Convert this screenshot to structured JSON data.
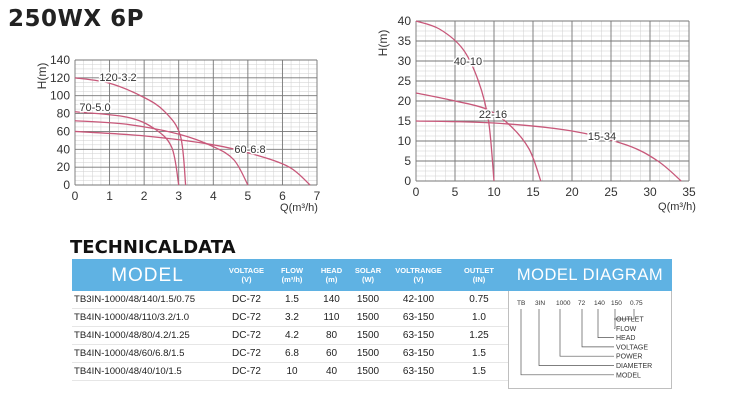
{
  "page": {
    "title": "250WX 6P"
  },
  "chart_data": [
    {
      "type": "line",
      "title": "",
      "xlabel": "Q(m³/h)",
      "ylabel": "H(m)",
      "xlim": [
        0,
        7
      ],
      "ylim": [
        0,
        140
      ],
      "xticks": [
        "0",
        "1",
        "2",
        "3",
        "4",
        "5",
        "6",
        "7"
      ],
      "yticks": [
        "0",
        "20",
        "40",
        "60",
        "80",
        "100",
        "120",
        "140"
      ],
      "grid": true,
      "series": [
        {
          "name": "120-3.2",
          "points": [
            [
              0,
              120
            ],
            [
              1,
              114
            ],
            [
              2,
              98
            ],
            [
              2.6,
              82
            ],
            [
              3.05,
              55
            ],
            [
              3.2,
              0
            ]
          ]
        },
        {
          "name": "70-5.0",
          "points": [
            [
              0,
              72
            ],
            [
              1.5,
              68
            ],
            [
              3,
              57
            ],
            [
              4,
              43
            ],
            [
              4.6,
              28
            ],
            [
              5,
              0
            ]
          ]
        },
        {
          "name": "60-6.8",
          "points": [
            [
              0,
              60
            ],
            [
              2,
              55
            ],
            [
              4,
              45
            ],
            [
              5.2,
              34
            ],
            [
              6.2,
              20
            ],
            [
              6.8,
              0
            ]
          ]
        },
        {
          "name": "",
          "points": [
            [
              0,
              82
            ],
            [
              1.5,
              76
            ],
            [
              2.3,
              63
            ],
            [
              2.8,
              42
            ],
            [
              3.0,
              0
            ]
          ]
        }
      ],
      "annotations": [
        "120-3.2",
        "70-5.0",
        "60-6.8"
      ]
    },
    {
      "type": "line",
      "title": "",
      "xlabel": "Q(m³/h)",
      "ylabel": "H(m)",
      "xlim": [
        0,
        35
      ],
      "ylim": [
        0,
        40
      ],
      "xticks": [
        "0",
        "5",
        "10",
        "15",
        "20",
        "25",
        "30",
        "35"
      ],
      "yticks": [
        "0",
        "5",
        "10",
        "15",
        "20",
        "25",
        "30",
        "35",
        "40"
      ],
      "grid": true,
      "series": [
        {
          "name": "40-10",
          "points": [
            [
              0,
              40
            ],
            [
              3,
              38
            ],
            [
              6,
              33
            ],
            [
              8,
              25
            ],
            [
              9.3,
              15
            ],
            [
              10,
              0
            ]
          ]
        },
        {
          "name": "22-16",
          "points": [
            [
              0,
              22
            ],
            [
              5,
              20
            ],
            [
              9,
              18
            ],
            [
              12,
              14
            ],
            [
              14.5,
              8
            ],
            [
              16,
              0
            ]
          ]
        },
        {
          "name": "15-34",
          "points": [
            [
              0,
              15
            ],
            [
              10,
              14.5
            ],
            [
              20,
              12.5
            ],
            [
              27,
              9
            ],
            [
              31,
              5
            ],
            [
              34,
              0
            ]
          ]
        }
      ],
      "annotations": [
        "40-10",
        "22-16",
        "15-34"
      ]
    }
  ],
  "technical": {
    "title": "TECHNICALDATA",
    "headers": {
      "model": "MODEL",
      "voltage": [
        "VOLTAGE",
        "(V)"
      ],
      "flow": [
        "FLOW",
        "(m³/h)"
      ],
      "head": [
        "HEAD",
        "(m)"
      ],
      "solar": [
        "SOLAR",
        "(W)"
      ],
      "voltrange": [
        "VOLTRANGE",
        "(V)"
      ],
      "outlet": [
        "OUTLET",
        "(IN)"
      ]
    },
    "rows": [
      {
        "model": "TB3IN-1000/48/140/1.5/0.75",
        "voltage": "DC-72",
        "flow": "1.5",
        "head": "140",
        "solar": "1500",
        "voltrange": "42-100",
        "outlet": "0.75"
      },
      {
        "model": "TB4IN-1000/48/110/3.2/1.0",
        "voltage": "DC-72",
        "flow": "3.2",
        "head": "110",
        "solar": "1500",
        "voltrange": "63-150",
        "outlet": "1.0"
      },
      {
        "model": "TB4IN-1000/48/80/4.2/1.25",
        "voltage": "DC-72",
        "flow": "4.2",
        "head": "80",
        "solar": "1500",
        "voltrange": "63-150",
        "outlet": "1.25"
      },
      {
        "model": "TB4IN-1000/48/60/6.8/1.5",
        "voltage": "DC-72",
        "flow": "6.8",
        "head": "60",
        "solar": "1500",
        "voltrange": "63-150",
        "outlet": "1.5"
      },
      {
        "model": "TB4IN-1000/48/40/10/1.5",
        "voltage": "DC-72",
        "flow": "10",
        "head": "40",
        "solar": "1500",
        "voltrange": "63-150",
        "outlet": "1.5"
      }
    ]
  },
  "diagram": {
    "title": "MODEL DIAGRAM",
    "code_parts": [
      "TB",
      "3IN",
      "1000",
      "72",
      "140",
      "150",
      "0.75"
    ],
    "labels": [
      "OUTLET",
      "FLOW",
      "HEAD",
      "VOLTAGE",
      "POWER",
      "DIAMETER",
      "MODEL"
    ]
  },
  "colors": {
    "curve": "#c8587a",
    "grid": "#777777",
    "header_blue": "#5fb2e3"
  }
}
